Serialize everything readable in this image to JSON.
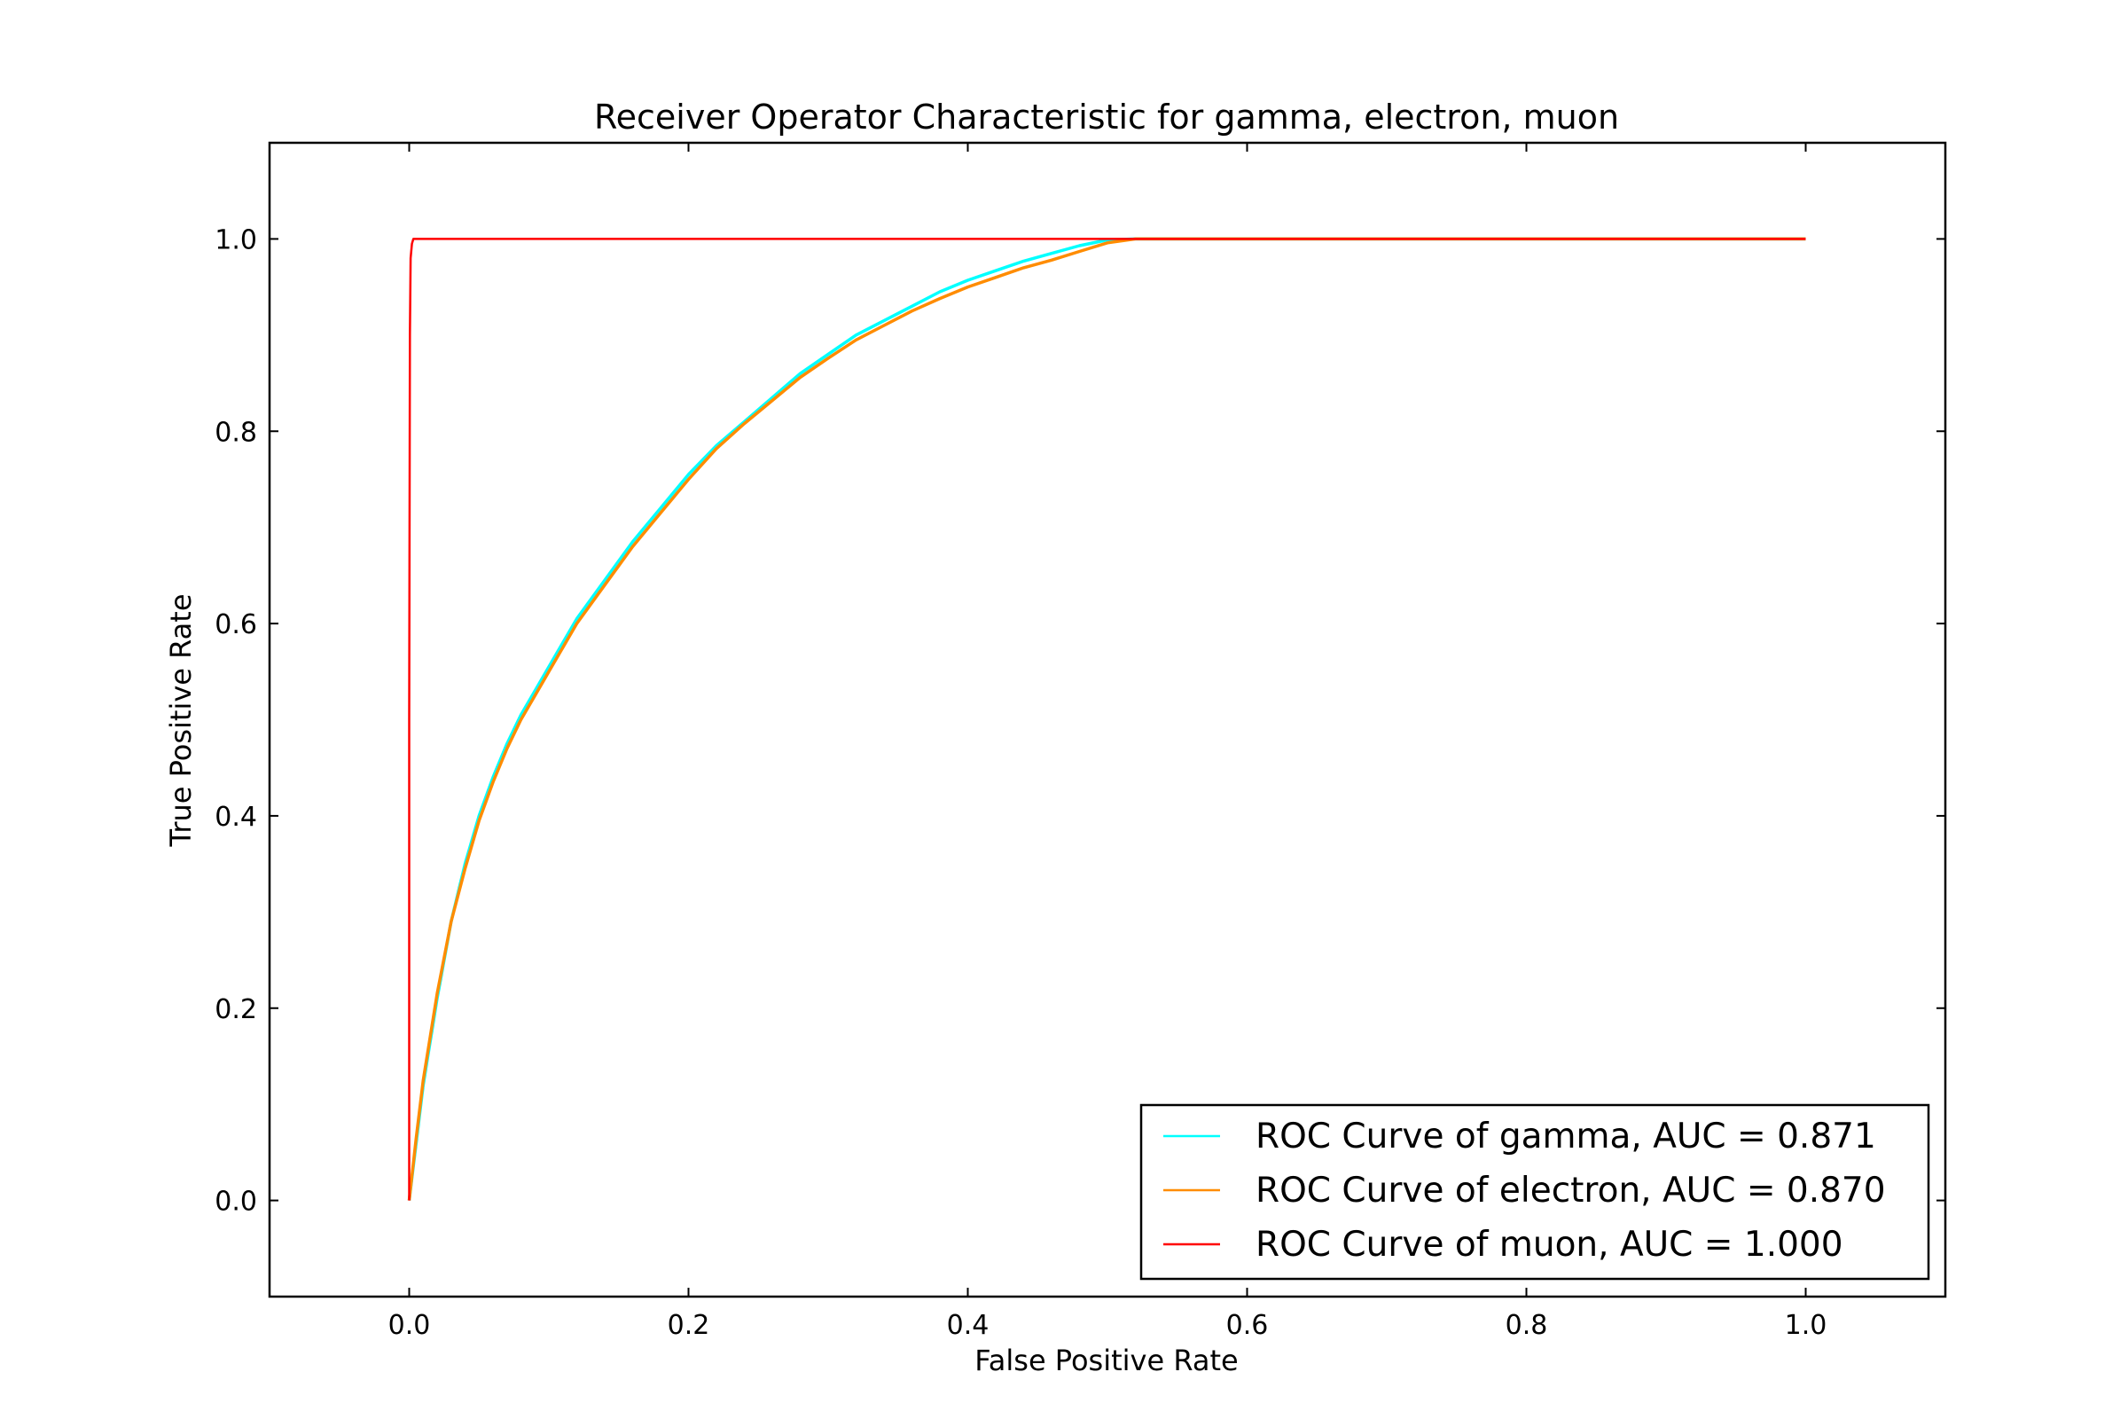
{
  "chart_data": {
    "type": "line",
    "title": "Receiver Operator Characteristic for gamma, electron, muon",
    "xlabel": "False Positive Rate",
    "ylabel": "True Positive Rate",
    "xlim": [
      -0.1,
      1.1
    ],
    "ylim": [
      -0.1,
      1.1
    ],
    "xticks": [
      "0.0",
      "0.2",
      "0.4",
      "0.6",
      "0.8",
      "1.0"
    ],
    "yticks": [
      "0.0",
      "0.2",
      "0.4",
      "0.6",
      "0.8",
      "1.0"
    ],
    "grid": false,
    "legend_position": "lower-right",
    "series": [
      {
        "name": "ROC Curve of gamma, AUC = 0.871",
        "color": "#00ffff",
        "x": [
          0.0,
          0.005,
          0.01,
          0.02,
          0.03,
          0.04,
          0.05,
          0.06,
          0.07,
          0.08,
          0.09,
          0.1,
          0.12,
          0.14,
          0.16,
          0.18,
          0.2,
          0.22,
          0.24,
          0.26,
          0.28,
          0.3,
          0.32,
          0.34,
          0.36,
          0.38,
          0.4,
          0.42,
          0.44,
          0.46,
          0.48,
          0.5,
          0.52,
          0.6,
          0.7,
          0.8,
          0.9,
          1.0
        ],
        "y": [
          0.0,
          0.06,
          0.12,
          0.21,
          0.29,
          0.35,
          0.4,
          0.44,
          0.475,
          0.505,
          0.53,
          0.555,
          0.605,
          0.645,
          0.685,
          0.72,
          0.755,
          0.785,
          0.81,
          0.835,
          0.86,
          0.88,
          0.9,
          0.915,
          0.93,
          0.945,
          0.957,
          0.967,
          0.977,
          0.985,
          0.993,
          0.999,
          1.0,
          1.0,
          1.0,
          1.0,
          1.0,
          1.0
        ]
      },
      {
        "name": "ROC Curve of electron, AUC = 0.870",
        "color": "#ff8c00",
        "x": [
          0.0,
          0.005,
          0.01,
          0.02,
          0.03,
          0.04,
          0.05,
          0.06,
          0.07,
          0.08,
          0.09,
          0.1,
          0.12,
          0.14,
          0.16,
          0.18,
          0.2,
          0.22,
          0.24,
          0.26,
          0.28,
          0.3,
          0.32,
          0.34,
          0.36,
          0.38,
          0.4,
          0.42,
          0.44,
          0.46,
          0.48,
          0.5,
          0.52,
          0.6,
          0.7,
          0.8,
          0.9,
          1.0
        ],
        "y": [
          0.0,
          0.065,
          0.125,
          0.215,
          0.29,
          0.345,
          0.395,
          0.435,
          0.47,
          0.5,
          0.525,
          0.55,
          0.6,
          0.64,
          0.68,
          0.715,
          0.75,
          0.782,
          0.808,
          0.832,
          0.856,
          0.876,
          0.895,
          0.91,
          0.925,
          0.938,
          0.95,
          0.96,
          0.97,
          0.978,
          0.987,
          0.996,
          1.0,
          1.0,
          1.0,
          1.0,
          1.0,
          1.0
        ]
      },
      {
        "name": "ROC Curve of muon, AUC = 1.000",
        "color": "#ff0000",
        "x": [
          0.0,
          0.0,
          0.0005,
          0.001,
          0.002,
          0.003,
          0.005,
          0.01,
          0.05,
          0.1,
          0.3,
          0.5,
          0.7,
          0.9,
          1.0
        ],
        "y": [
          0.0,
          0.5,
          0.9,
          0.98,
          0.995,
          1.0,
          1.0,
          1.0,
          1.0,
          1.0,
          1.0,
          1.0,
          1.0,
          1.0,
          1.0
        ]
      }
    ]
  }
}
